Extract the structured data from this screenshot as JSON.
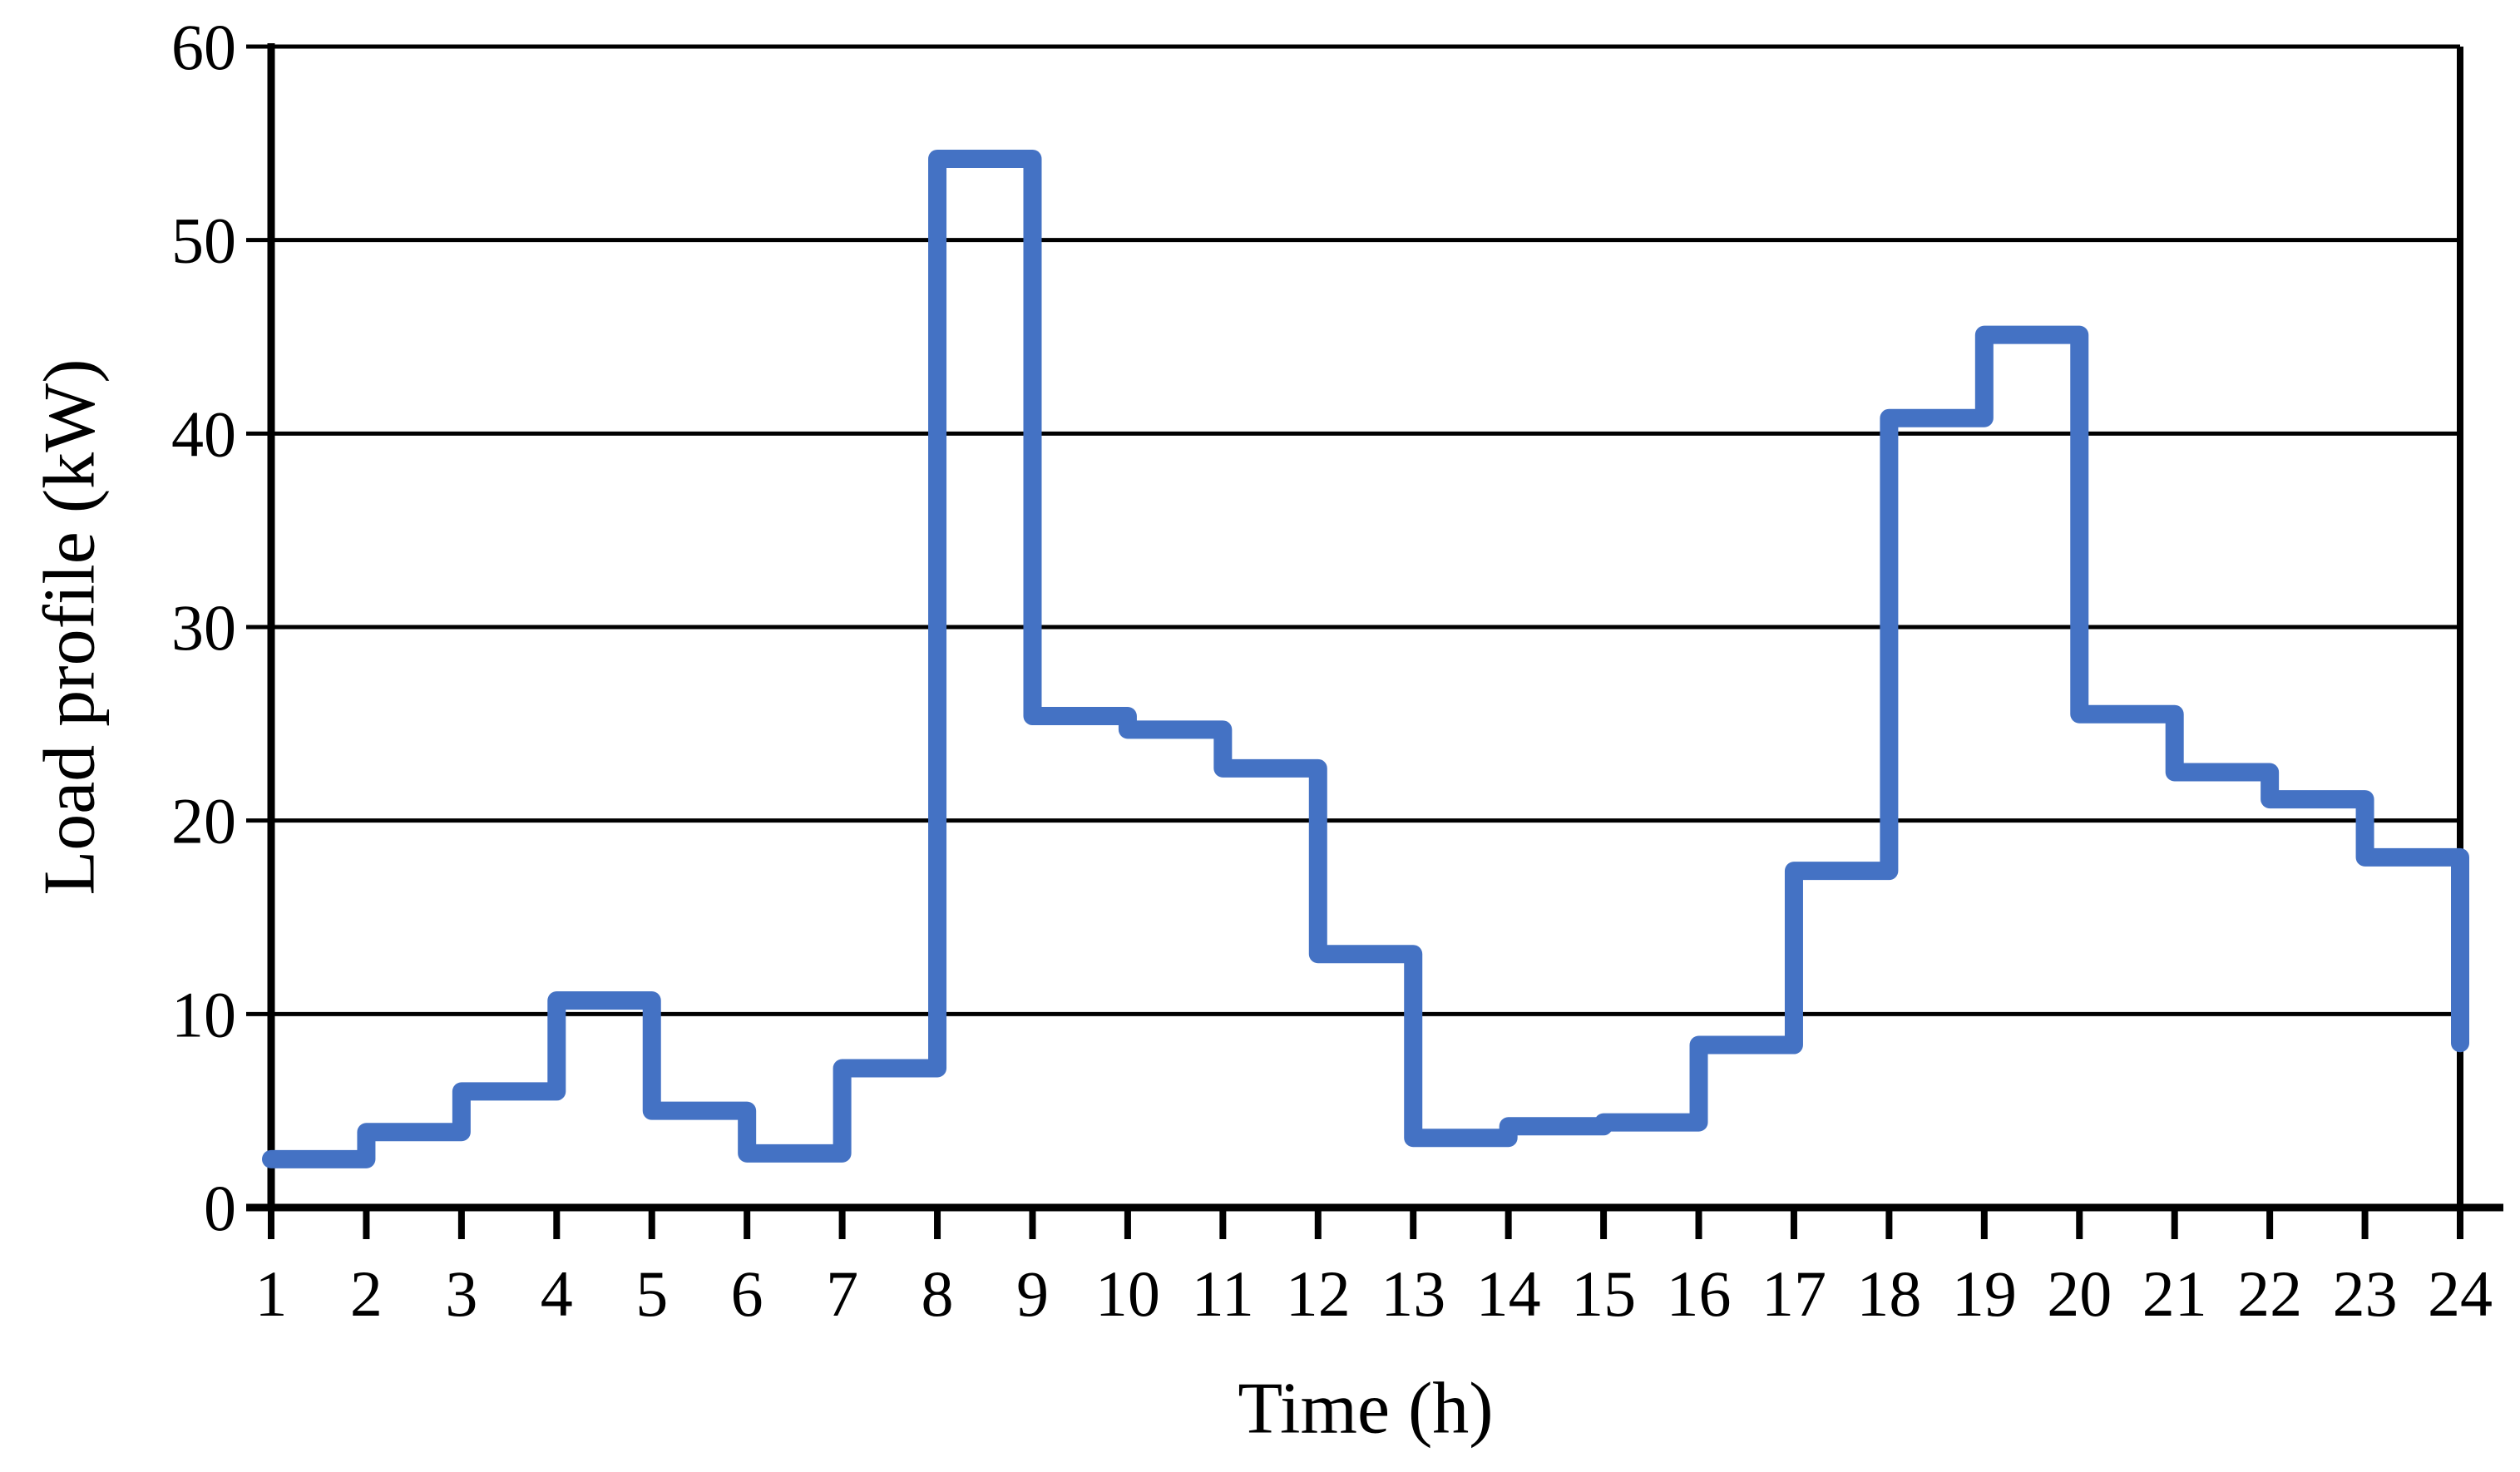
{
  "page": {
    "background_color": "#ffffff",
    "text_color": "#000000"
  },
  "chart_data": {
    "type": "line",
    "step_mode": "hold-until-next",
    "title": "",
    "xlabel": "Time (h)",
    "ylabel": "Load profile (kW)",
    "x": [
      1,
      2,
      3,
      4,
      5,
      6,
      7,
      8,
      9,
      10,
      11,
      12,
      13,
      14,
      15,
      16,
      17,
      18,
      19,
      20,
      21,
      22,
      23,
      24
    ],
    "values": [
      2.5,
      3.9,
      6.0,
      10.7,
      5.0,
      2.8,
      7.2,
      54.2,
      25.4,
      24.7,
      22.7,
      13.1,
      3.6,
      4.2,
      4.4,
      8.4,
      17.4,
      40.8,
      45.1,
      25.5,
      22.5,
      21.1,
      18.1,
      8.5
    ],
    "xlim": [
      1,
      24
    ],
    "ylim": [
      0,
      60
    ],
    "xticks": [
      1,
      2,
      3,
      4,
      5,
      6,
      7,
      8,
      9,
      10,
      11,
      12,
      13,
      14,
      15,
      16,
      17,
      18,
      19,
      20,
      21,
      22,
      23,
      24
    ],
    "yticks": [
      0,
      10,
      20,
      30,
      40,
      50,
      60
    ],
    "grid": "horizontal",
    "legend_position": "none",
    "line_color": "#4472C4",
    "axis_color": "#000000",
    "gridline_color": "#000000"
  }
}
